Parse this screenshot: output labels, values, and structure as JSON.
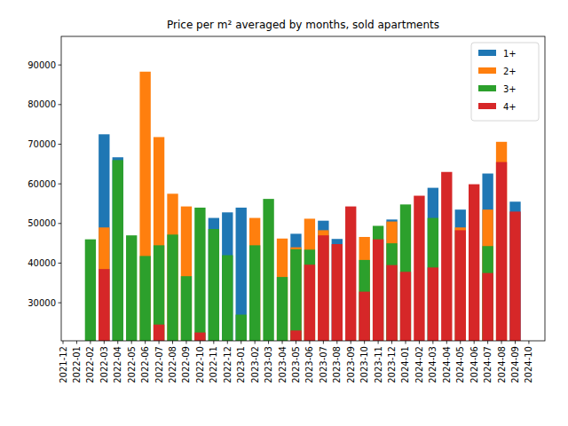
{
  "chart_data": {
    "type": "bar",
    "title": "Price per m² averaged by months, sold apartments",
    "categories": [
      "2021-12",
      "2022-01",
      "2022-02",
      "2022-03",
      "2022-04",
      "2022-05",
      "2022-06",
      "2022-07",
      "2022-08",
      "2022-09",
      "2022-10",
      "2022-11",
      "2022-12",
      "2023-01",
      "2023-02",
      "2023-03",
      "2023-04",
      "2023-05",
      "2023-06",
      "2023-07",
      "2023-08",
      "2023-09",
      "2023-10",
      "2023-11",
      "2023-12",
      "2024-01",
      "2024-02",
      "2024-03",
      "2024-04",
      "2024-05",
      "2024-06",
      "2024-07",
      "2024-08",
      "2024-09",
      "2024-10"
    ],
    "series": [
      {
        "name": "1+",
        "color": "#1f77b4",
        "values": [
          null,
          null,
          null,
          72500,
          66700,
          null,
          null,
          null,
          null,
          null,
          null,
          51400,
          52800,
          54000,
          null,
          null,
          null,
          47400,
          null,
          50700,
          46100,
          null,
          null,
          null,
          51000,
          null,
          null,
          59000,
          null,
          53500,
          null,
          62600,
          null,
          55500,
          null
        ]
      },
      {
        "name": "2+",
        "color": "#ff7f0e",
        "values": [
          null,
          null,
          null,
          49000,
          null,
          null,
          88300,
          71800,
          57500,
          54300,
          null,
          null,
          null,
          null,
          51400,
          null,
          46200,
          44000,
          51200,
          48300,
          null,
          null,
          46600,
          null,
          50500,
          null,
          null,
          null,
          null,
          49000,
          null,
          53500,
          70600,
          null,
          null
        ]
      },
      {
        "name": "3+",
        "color": "#2ca02c",
        "values": [
          null,
          null,
          46000,
          null,
          66000,
          47000,
          41800,
          44500,
          47200,
          36700,
          54000,
          48600,
          42000,
          27000,
          44500,
          56200,
          36500,
          43500,
          43400,
          null,
          null,
          null,
          40800,
          49400,
          45000,
          54800,
          null,
          51400,
          null,
          null,
          null,
          44300,
          null,
          null,
          null
        ]
      },
      {
        "name": "4+",
        "color": "#d62728",
        "values": [
          null,
          null,
          null,
          38500,
          null,
          null,
          null,
          24500,
          null,
          null,
          22500,
          null,
          null,
          null,
          null,
          null,
          null,
          23000,
          39600,
          47000,
          44800,
          54300,
          32800,
          46000,
          39500,
          37800,
          57000,
          38900,
          63000,
          48300,
          59900,
          37500,
          65500,
          53000,
          null
        ]
      }
    ],
    "ylim": [
      20400,
      97200
    ],
    "yticks": [
      30000,
      40000,
      50000,
      60000,
      70000,
      80000,
      90000
    ],
    "grid": false,
    "legend": "upper right",
    "stacked": false
  }
}
